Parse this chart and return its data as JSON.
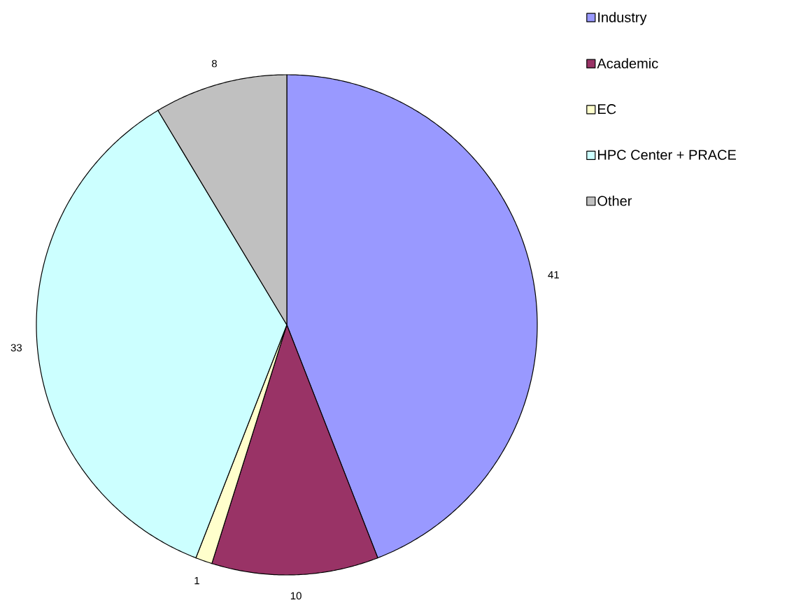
{
  "chart_data": {
    "type": "pie",
    "categories": [
      "Industry",
      "Academic",
      "EC",
      "HPC Center + PRACE",
      "Other"
    ],
    "values": [
      41,
      10,
      1,
      33,
      8
    ],
    "colors": [
      "#9999ff",
      "#993366",
      "#ffffcc",
      "#ccffff",
      "#c0c0c0"
    ],
    "data_labels": true,
    "legend": "top right"
  }
}
